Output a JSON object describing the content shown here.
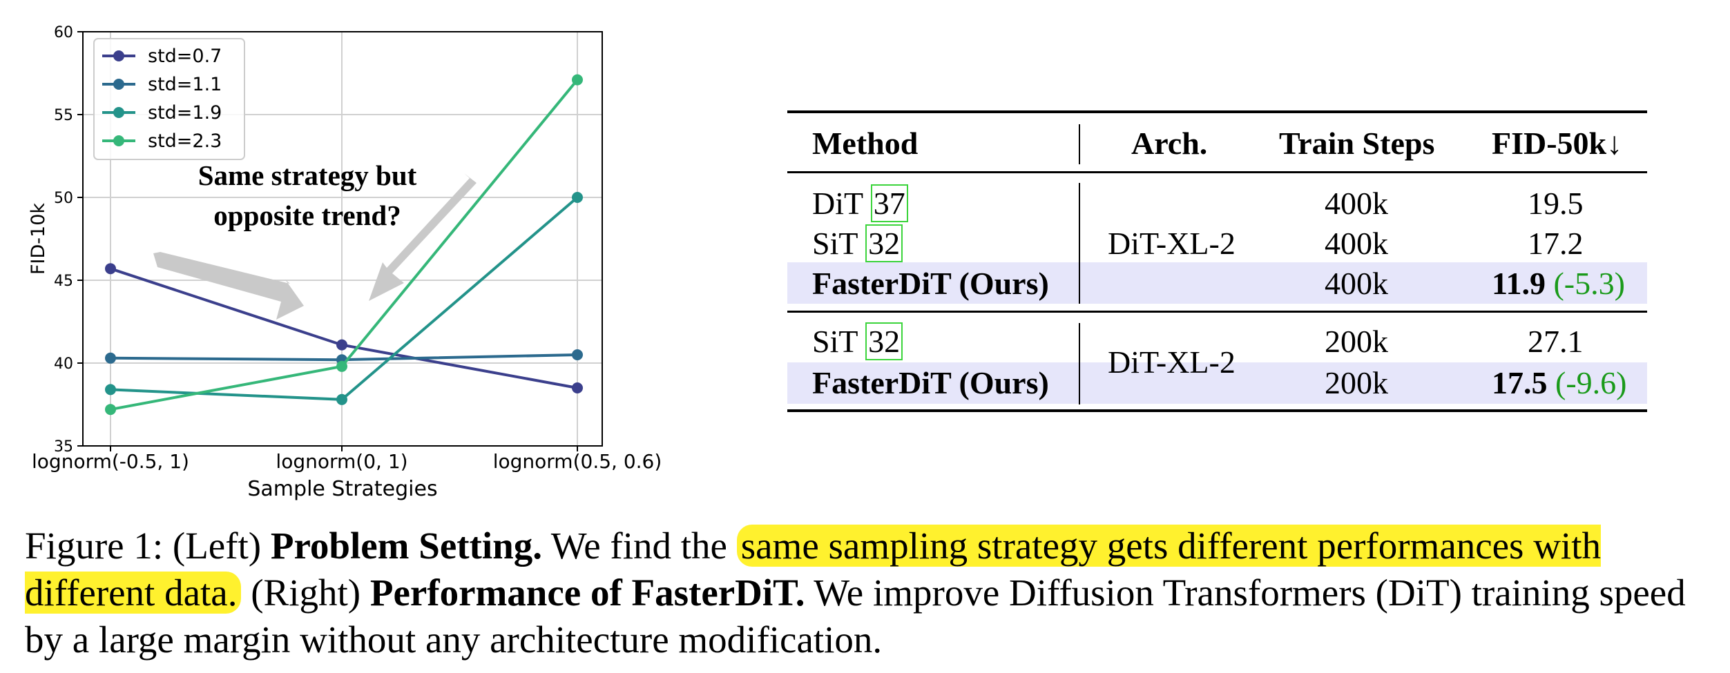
{
  "chart_data": {
    "type": "line",
    "title": "",
    "xlabel": "Sample Strategies",
    "ylabel": "FID-10k",
    "categories": [
      "lognorm(-0.5, 1)",
      "lognorm(0, 1)",
      "lognorm(0.5, 0.6)"
    ],
    "ylim": [
      35,
      60
    ],
    "yticks": [
      35,
      40,
      45,
      50,
      55,
      60
    ],
    "grid": true,
    "legend_position": "top-left",
    "series": [
      {
        "name": "std=0.7",
        "values": [
          45.7,
          41.1,
          38.5
        ],
        "color": "#3b3f8c"
      },
      {
        "name": "std=1.1",
        "values": [
          40.3,
          40.2,
          40.5
        ],
        "color": "#2c6a8e"
      },
      {
        "name": "std=1.9",
        "values": [
          38.4,
          37.8,
          50.0
        ],
        "color": "#23938a"
      },
      {
        "name": "std=2.3",
        "values": [
          37.2,
          39.8,
          57.1
        ],
        "color": "#35b779"
      }
    ],
    "annotation": {
      "line1": "Same strategy but",
      "line2": "opposite trend?"
    }
  },
  "table": {
    "headers": {
      "method": "Method",
      "arch": "Arch.",
      "steps": "Train Steps",
      "fid": "FID-50k↓"
    },
    "group1": {
      "arch": "DiT-XL-2",
      "rows": [
        {
          "method": "DiT",
          "cite": "37",
          "steps": "400k",
          "fid": "19.5"
        },
        {
          "method": "SiT",
          "cite": "32",
          "steps": "400k",
          "fid": "17.2"
        },
        {
          "method": "FasterDiT (Ours)",
          "steps": "400k",
          "fid": "11.9",
          "delta": "(-5.3)"
        }
      ]
    },
    "group2": {
      "arch": "DiT-XL-2",
      "rows": [
        {
          "method": "SiT",
          "cite": "32",
          "steps": "200k",
          "fid": "27.1"
        },
        {
          "method": "FasterDiT (Ours)",
          "steps": "200k",
          "fid": "17.5",
          "delta": "(-9.6)"
        }
      ]
    }
  },
  "caption": {
    "fig_label": "Figure 1: (Left)",
    "left_title": "Problem Setting.",
    "text1": "We find the",
    "highlight": "same sampling strategy gets different performances with different data.",
    "right_label": "(Right)",
    "right_title": "Performance of FasterDiT.",
    "text2": "We improve Diffusion Transformers (DiT) training speed by a large margin without any architecture modification."
  }
}
